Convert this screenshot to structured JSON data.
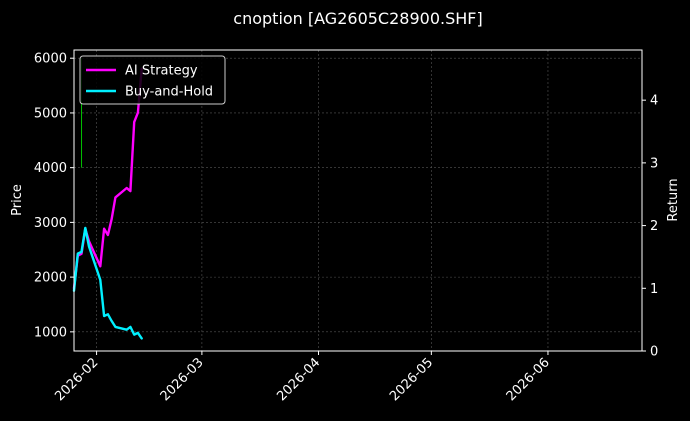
{
  "chart_data": {
    "type": "line",
    "title": "cnoption [AG2605C28900.SHF]",
    "ylabel": "Price",
    "y2label": "Return",
    "grid": true,
    "legend_position": "top-left",
    "xlim": [
      "2026-01-26",
      "2026-06-26"
    ],
    "ylim": [
      650,
      6150
    ],
    "y2lim": [
      0,
      4.8
    ],
    "x_ticks": [
      "2026-02-01",
      "2026-03-01",
      "2026-04-01",
      "2026-05-01",
      "2026-06-01"
    ],
    "x_tick_labels": [
      "2026-02",
      "2026-03",
      "2026-04",
      "2026-05",
      "2026-06"
    ],
    "y_ticks": [
      1000,
      2000,
      3000,
      4000,
      5000,
      6000
    ],
    "y2_ticks": [
      0,
      1,
      2,
      3,
      4
    ],
    "series": [
      {
        "name": "AI Strategy",
        "axis": "right",
        "color": "#ff00ff",
        "x": [
          "2026-01-26",
          "2026-01-27",
          "2026-01-28",
          "2026-01-29",
          "2026-01-30",
          "2026-02-02",
          "2026-02-03",
          "2026-02-04",
          "2026-02-05",
          "2026-02-06",
          "2026-02-09",
          "2026-02-10",
          "2026-02-11",
          "2026-02-12",
          "2026-02-13"
        ],
        "values": [
          1.0,
          1.52,
          1.55,
          1.95,
          1.75,
          1.35,
          1.95,
          1.85,
          2.1,
          2.45,
          2.6,
          2.55,
          3.65,
          3.8,
          4.5
        ]
      },
      {
        "name": "Buy-and-Hold",
        "axis": "left",
        "color": "#00f0ff",
        "x": [
          "2026-01-26",
          "2026-01-27",
          "2026-01-28",
          "2026-01-29",
          "2026-01-30",
          "2026-02-02",
          "2026-02-03",
          "2026-02-04",
          "2026-02-05",
          "2026-02-06",
          "2026-02-09",
          "2026-02-10",
          "2026-02-11",
          "2026-02-12",
          "2026-02-13"
        ],
        "values": [
          1750,
          2430,
          2460,
          2900,
          2560,
          1950,
          1290,
          1320,
          1200,
          1090,
          1040,
          1090,
          950,
          980,
          880
        ]
      }
    ],
    "markers": [
      {
        "x": "2026-01-28",
        "price_from": 4000,
        "price_to": 6000,
        "color": "#00c000"
      }
    ]
  }
}
